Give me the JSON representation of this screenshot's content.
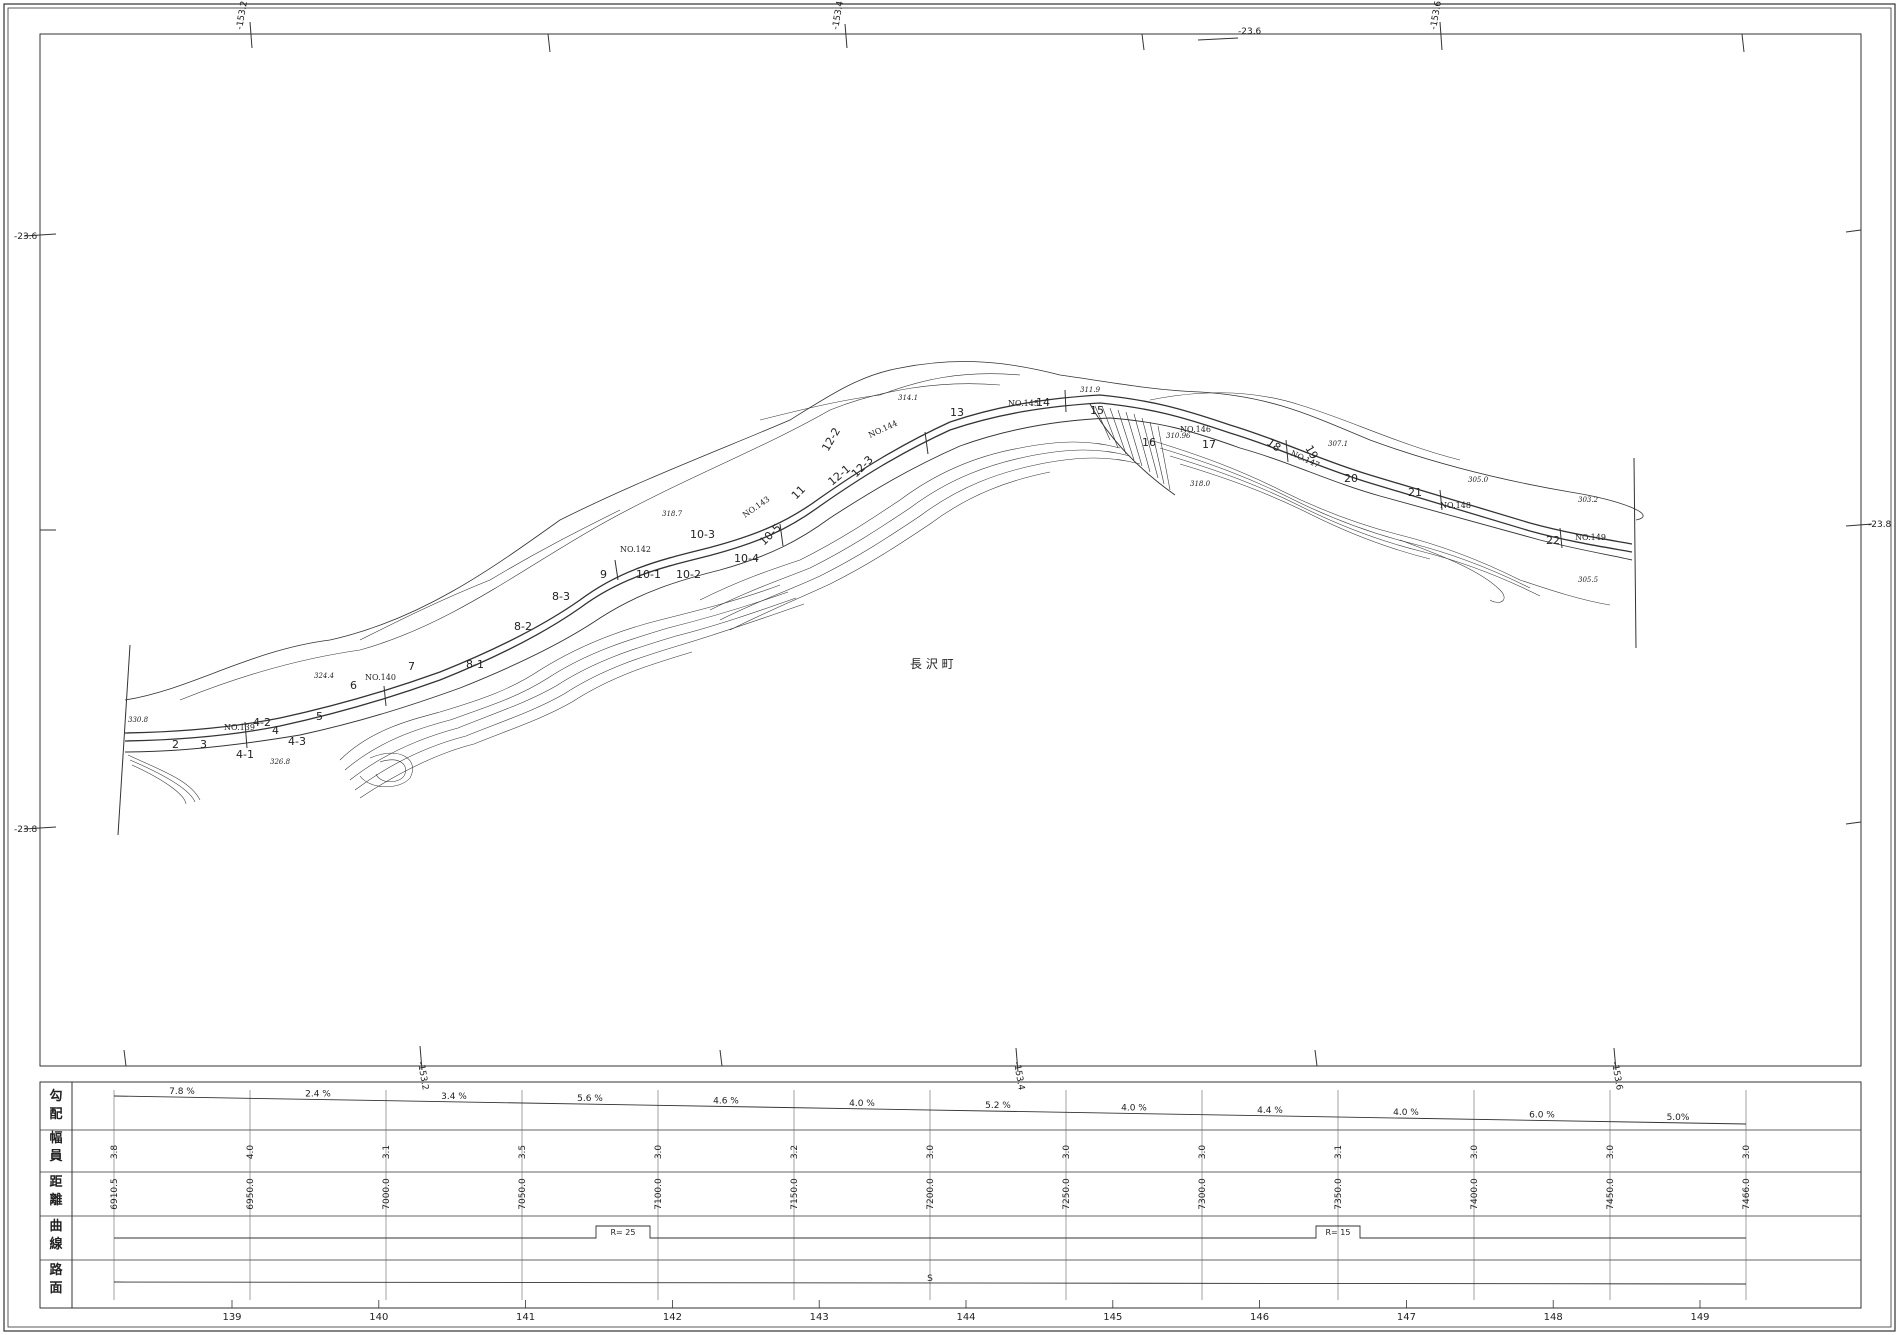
{
  "grid_labels": {
    "top": [
      "-153.2",
      "-153.4",
      "-23.6",
      "-153.6"
    ],
    "left": [
      "-23.6",
      "-23.8"
    ],
    "right": [
      "-23.8"
    ],
    "bottom": [
      "-153.2",
      "-153.4",
      "-153.6"
    ]
  },
  "town_name": "長 沢 町",
  "map_labels": {
    "stations": [
      "NO.139",
      "NO.140",
      "NO.142",
      "NO.143",
      "NO.144",
      "NO.145",
      "NO.146",
      "NO.147",
      "NO.148",
      "NO.149"
    ],
    "sections": [
      "2",
      "3",
      "4-1",
      "4-2",
      "4-3",
      "4",
      "5",
      "6",
      "7",
      "8-1",
      "8-2",
      "8-3",
      "9",
      "10-1",
      "10-2",
      "10-3",
      "10-4",
      "10-5",
      "11",
      "12-1",
      "12-2",
      "12-3",
      "13",
      "14",
      "15",
      "16",
      "17",
      "18",
      "19",
      "20",
      "21",
      "22"
    ],
    "elevations": [
      "330.8",
      "324.4",
      "318.7",
      "314.1",
      "311.9",
      "310.96",
      "307.1",
      "305.0",
      "303.2",
      "305.5",
      "318.0",
      "326.8"
    ]
  },
  "profile": {
    "rows": [
      {
        "key": "gradient",
        "label": "勾配"
      },
      {
        "key": "width",
        "label": "幅員"
      },
      {
        "key": "distance",
        "label": "距離"
      },
      {
        "key": "curve",
        "label": "曲線"
      },
      {
        "key": "surface",
        "label": "路面"
      }
    ],
    "gradients": [
      "7.8 %",
      "2.4 %",
      "3.4 %",
      "5.6 %",
      "4.6 %",
      "4.0 %",
      "5.2 %",
      "4.0 %",
      "4.4 %",
      "4.0 %",
      "6.0 %",
      "5.0%"
    ],
    "widths": [
      "3.8",
      "4.0",
      "3.1",
      "3.5",
      "3.0",
      "3.2",
      "3.0",
      "3.0",
      "3.0",
      "3.1",
      "3.0",
      "3.0",
      "3.0"
    ],
    "distances": [
      "6910.5",
      "6950.0",
      "7000.0",
      "7050.0",
      "7100.0",
      "7150.0",
      "7200.0",
      "7250.0",
      "7300.0",
      "7350.0",
      "7400.0",
      "7450.0",
      "7466.0"
    ],
    "curves": [
      "R= 25",
      "R= 15"
    ],
    "surface": "S",
    "stations": [
      "139",
      "140",
      "141",
      "142",
      "143",
      "144",
      "145",
      "146",
      "147",
      "148",
      "149"
    ]
  }
}
